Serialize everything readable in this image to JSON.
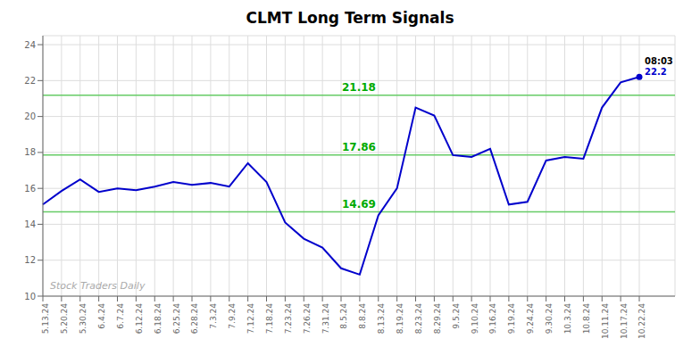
{
  "chart_data": {
    "type": "line",
    "title": "CLMT Long Term Signals",
    "categories": [
      "5.13.24",
      "5.20.24",
      "5.30.24",
      "6.4.24",
      "6.7.24",
      "6.12.24",
      "6.18.24",
      "6.25.24",
      "6.28.24",
      "7.3.24",
      "7.9.24",
      "7.12.24",
      "7.18.24",
      "7.23.24",
      "7.26.24",
      "7.31.24",
      "8.5.24",
      "8.8.24",
      "8.13.24",
      "8.19.24",
      "8.23.24",
      "8.29.24",
      "9.5.24",
      "9.10.24",
      "9.16.24",
      "9.19.24",
      "9.24.24",
      "9.30.24",
      "10.3.24",
      "10.8.24",
      "10.11.24",
      "10.17.24",
      "10.22.24"
    ],
    "values": [
      15.1,
      15.85,
      16.5,
      15.8,
      16.0,
      15.9,
      16.1,
      16.35,
      16.2,
      16.3,
      16.1,
      17.4,
      16.35,
      14.1,
      13.2,
      12.7,
      11.55,
      11.2,
      14.5,
      16.0,
      20.5,
      20.05,
      17.85,
      17.75,
      18.2,
      15.1,
      15.25,
      17.55,
      17.75,
      17.65,
      20.5,
      21.9,
      22.2
    ],
    "color": "#0000cc",
    "ylim": [
      10,
      24.5
    ],
    "yticks": [
      10,
      12,
      14,
      16,
      18,
      20,
      22,
      24
    ],
    "grid": true,
    "hlines": [
      {
        "value": 14.69,
        "label": "14.69",
        "color": "#66cc66"
      },
      {
        "value": 17.86,
        "label": "17.86",
        "color": "#66cc66"
      },
      {
        "value": 21.18,
        "label": "21.18",
        "color": "#66cc66"
      }
    ],
    "annotations": [
      {
        "text": "08:03",
        "color": "#000000"
      },
      {
        "text": "22.2",
        "color": "#0000cc"
      },
      {
        "text": "Stock Traders Daily",
        "color": "#aaaaaa"
      }
    ]
  }
}
